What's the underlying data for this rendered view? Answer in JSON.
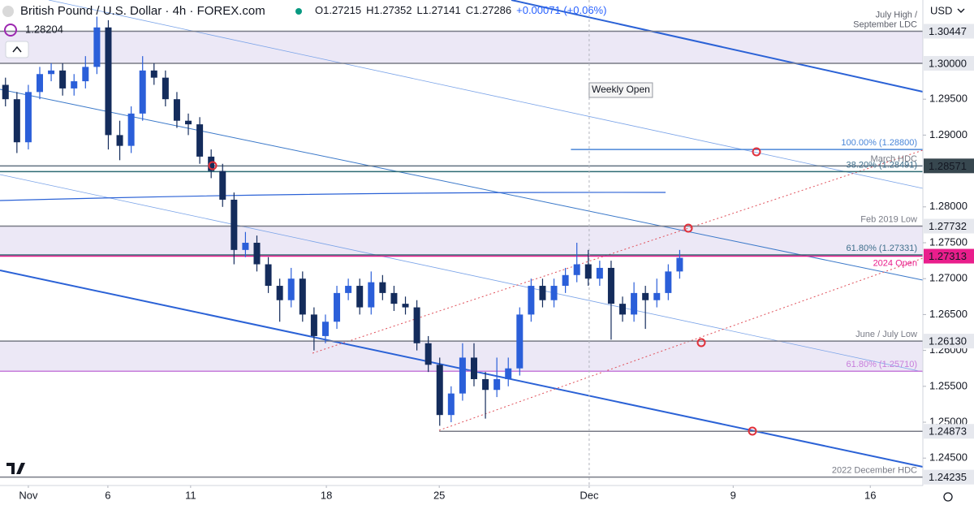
{
  "chart_data": {
    "type": "candlestick",
    "title": "British Pound / U.S. Dollar · 4h · FOREX.com",
    "ohlc_readout": [
      "O1.27215",
      "H1.27352",
      "L1.27141",
      "C1.27286",
      "+0.00071 (+0.06%)"
    ],
    "price_badge": "1.28204",
    "currency": "USD",
    "annotations": [
      "Weekly Open"
    ],
    "up_color": "#2b5fd9",
    "down_color": "#142c5c",
    "xlim": [
      -6.2,
      195.7
    ],
    "xticks": [
      {
        "value": 0,
        "label": "Nov"
      },
      {
        "value": 17.4,
        "label": "6"
      },
      {
        "value": 35.5,
        "label": "11"
      },
      {
        "value": 65.2,
        "label": "18"
      },
      {
        "value": 89.9,
        "label": "25"
      },
      {
        "value": 122.7,
        "label": "Dec"
      },
      {
        "value": 154.2,
        "label": "9"
      },
      {
        "value": 184.2,
        "label": "16"
      }
    ],
    "ylim": [
      1.24118,
      1.30882
    ],
    "yticks": [
      {
        "value": 1.245,
        "label": "1.24500"
      },
      {
        "value": 1.25,
        "label": "1.25000"
      },
      {
        "value": 1.255,
        "label": "1.25500"
      },
      {
        "value": 1.26,
        "label": "1.26000"
      },
      {
        "value": 1.265,
        "label": "1.26500"
      },
      {
        "value": 1.27,
        "label": "1.27000"
      },
      {
        "value": 1.275,
        "label": "1.27500"
      },
      {
        "value": 1.28,
        "label": "1.28000"
      },
      {
        "value": 1.29,
        "label": "1.29000"
      },
      {
        "value": 1.295,
        "label": "1.29500"
      }
    ],
    "x": [
      -5,
      -2.5,
      0,
      2.5,
      5,
      7.5,
      10,
      12.5,
      15,
      17.5,
      20,
      22.5,
      25,
      27.5,
      30,
      32.5,
      35,
      37.5,
      40,
      42.5,
      45,
      47.5,
      50,
      52.5,
      55,
      57.5,
      60,
      62.5,
      65,
      67.5,
      70,
      72.5,
      75,
      77.5,
      80,
      82.5,
      85,
      87.5,
      90,
      92.5,
      95,
      97.5,
      100,
      102.5,
      105,
      107.5,
      110,
      112.5,
      115,
      117.5,
      120,
      122.5,
      125,
      127.5,
      130,
      132.5,
      135,
      137.5,
      140,
      142.5
    ],
    "candles": [
      [
        1.297,
        1.298,
        1.294,
        1.295
      ],
      [
        1.295,
        1.296,
        1.2875,
        1.289
      ],
      [
        1.289,
        1.297,
        1.288,
        1.296
      ],
      [
        1.296,
        1.2995,
        1.295,
        1.2985
      ],
      [
        1.2985,
        1.3,
        1.2975,
        1.299
      ],
      [
        1.299,
        1.3,
        1.2955,
        1.2965
      ],
      [
        1.2965,
        1.2985,
        1.2955,
        1.2975
      ],
      [
        1.2975,
        1.301,
        1.2965,
        1.2995
      ],
      [
        1.2995,
        1.3065,
        1.2985,
        1.305
      ],
      [
        1.305,
        1.306,
        1.288,
        1.29
      ],
      [
        1.29,
        1.292,
        1.2865,
        1.2885
      ],
      [
        1.2885,
        1.294,
        1.2875,
        1.293
      ],
      [
        1.293,
        1.301,
        1.292,
        1.299
      ],
      [
        1.299,
        1.3,
        1.297,
        1.298
      ],
      [
        1.298,
        1.299,
        1.294,
        1.295
      ],
      [
        1.295,
        1.296,
        1.291,
        1.292
      ],
      [
        1.292,
        1.293,
        1.29,
        1.2915
      ],
      [
        1.2915,
        1.2925,
        1.286,
        1.287
      ],
      [
        1.287,
        1.288,
        1.284,
        1.285
      ],
      [
        1.285,
        1.286,
        1.28,
        1.281
      ],
      [
        1.281,
        1.282,
        1.272,
        1.274
      ],
      [
        1.274,
        1.2765,
        1.273,
        1.275
      ],
      [
        1.275,
        1.276,
        1.271,
        1.272
      ],
      [
        1.272,
        1.273,
        1.268,
        1.269
      ],
      [
        1.269,
        1.27,
        1.264,
        1.267
      ],
      [
        1.267,
        1.2715,
        1.266,
        1.27
      ],
      [
        1.27,
        1.271,
        1.264,
        1.265
      ],
      [
        1.265,
        1.266,
        1.26,
        1.262
      ],
      [
        1.262,
        1.265,
        1.261,
        1.264
      ],
      [
        1.264,
        1.269,
        1.263,
        1.268
      ],
      [
        1.268,
        1.27,
        1.267,
        1.269
      ],
      [
        1.269,
        1.27,
        1.265,
        1.266
      ],
      [
        1.266,
        1.271,
        1.265,
        1.2695
      ],
      [
        1.2695,
        1.2705,
        1.267,
        1.268
      ],
      [
        1.268,
        1.269,
        1.2655,
        1.2665
      ],
      [
        1.2665,
        1.2675,
        1.265,
        1.266
      ],
      [
        1.266,
        1.267,
        1.26,
        1.261
      ],
      [
        1.261,
        1.262,
        1.257,
        1.258
      ],
      [
        1.258,
        1.259,
        1.2495,
        1.251
      ],
      [
        1.251,
        1.255,
        1.25,
        1.254
      ],
      [
        1.254,
        1.261,
        1.253,
        1.259
      ],
      [
        1.259,
        1.261,
        1.255,
        1.256
      ],
      [
        1.256,
        1.257,
        1.2505,
        1.2545
      ],
      [
        1.2545,
        1.259,
        1.2535,
        1.256
      ],
      [
        1.256,
        1.259,
        1.255,
        1.2575
      ],
      [
        1.2575,
        1.266,
        1.2565,
        1.265
      ],
      [
        1.265,
        1.27,
        1.264,
        1.269
      ],
      [
        1.269,
        1.27,
        1.266,
        1.267
      ],
      [
        1.267,
        1.27,
        1.266,
        1.269
      ],
      [
        1.269,
        1.2715,
        1.268,
        1.2705
      ],
      [
        1.2705,
        1.275,
        1.2695,
        1.272
      ],
      [
        1.272,
        1.274,
        1.269,
        1.27
      ],
      [
        1.27,
        1.2725,
        1.269,
        1.2715
      ],
      [
        1.2715,
        1.2725,
        1.2615,
        1.2665
      ],
      [
        1.2665,
        1.2675,
        1.264,
        1.265
      ],
      [
        1.265,
        1.2695,
        1.264,
        1.268
      ],
      [
        1.268,
        1.269,
        1.263,
        1.267
      ],
      [
        1.267,
        1.27,
        1.266,
        1.268
      ],
      [
        1.268,
        1.272,
        1.267,
        1.271
      ],
      [
        1.271,
        1.274,
        1.27,
        1.2729
      ]
    ],
    "zones": [
      [
        1.3,
        1.30447
      ],
      [
        1.27313,
        1.27732
      ],
      [
        1.2571,
        1.2613
      ]
    ],
    "zone_color": "#ece8f6",
    "levels": [
      {
        "price": 1.30447,
        "axis_label": "1.30447",
        "label": [
          "July High /",
          "September LDC"
        ],
        "color": "#787b86",
        "text_color": "#5d606b",
        "badge": "#e6e8ee"
      },
      {
        "price": 1.3,
        "axis_label": "1.30000",
        "color": "#787b86",
        "badge": "#e6e8ee"
      },
      {
        "price": 1.288,
        "label": [
          "100.00% (1.28800)"
        ],
        "color": "#4a86d8",
        "text_color": "#4a86d8",
        "from_x": 118.7
      },
      {
        "price": 1.28571,
        "axis_label": "1.28571",
        "label": [
          "March HDC"
        ],
        "color": "#607080",
        "text_color": "#787b86",
        "badge": "#37474f"
      },
      {
        "price": 1.28491,
        "label": [
          "38.20% (1.28491)"
        ],
        "color": "#2e6b73",
        "text_color": "#3e6f8c"
      },
      {
        "price": 1.27732,
        "axis_label": "1.27732",
        "label": [
          "Feb 2019 Low"
        ],
        "color": "#787b86",
        "text_color": "#787b86",
        "badge": "#e6e8ee"
      },
      {
        "price": 1.27331,
        "label": [
          "61.80% (1.27331)"
        ],
        "color": "#2e6b73",
        "text_color": "#3e6f8c"
      },
      {
        "price": 1.27313,
        "axis_label": "1.27313",
        "label": [
          "2024 Open"
        ],
        "color": "#e91e8c",
        "text_color": "#e91e8c",
        "badge": "#e91e8c"
      },
      {
        "price": 1.2613,
        "axis_label": "1.26130",
        "label": [
          "June / July Low"
        ],
        "color": "#787b86",
        "text_color": "#787b86",
        "badge": "#e6e8ee"
      },
      {
        "price": 1.2571,
        "label": [
          "61.80% (1.25710)"
        ],
        "color": "#c77ddb",
        "text_color": "#c77ddb"
      },
      {
        "price": 1.24873,
        "axis_label": "1.24873",
        "color": "#787b86",
        "badge": "#e6e8ee",
        "from_x": 89.9
      },
      {
        "price": 1.24235,
        "axis_label": "1.24235",
        "label": [
          "2022 December HDC"
        ],
        "color": "#787b86",
        "text_color": "#787b86",
        "badge": "#e6e8ee"
      }
    ]
  }
}
